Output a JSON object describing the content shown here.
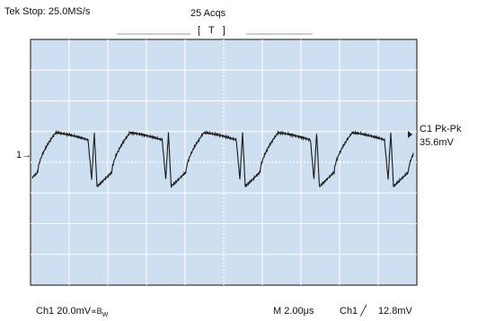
{
  "header": {
    "status": "Tek Stop:",
    "sample_rate": "25.0MS/s",
    "acquisitions": "25 Acqs",
    "trigger_position_label": "[   T   ]"
  },
  "channel_marker": "1→",
  "measurement": {
    "label": "C1 Pk-Pk",
    "value": "35.6mV"
  },
  "footer": {
    "channel_scale": "Ch1  20.0mV",
    "bandwidth_symbol": "∝B",
    "bandwidth_sub": "W",
    "timebase": "M  2.00μs",
    "trigger_source": "Ch1",
    "trigger_slope_symbol": "╱",
    "trigger_level": "12.8mV"
  },
  "colors": {
    "screen_bg": "#cddff0",
    "grid": "#ffffff",
    "trace": "#1a1a1a",
    "frame": "#333333"
  },
  "trace_data": {
    "period_us": 1.6,
    "cycles": 6,
    "units": "divisions"
  }
}
